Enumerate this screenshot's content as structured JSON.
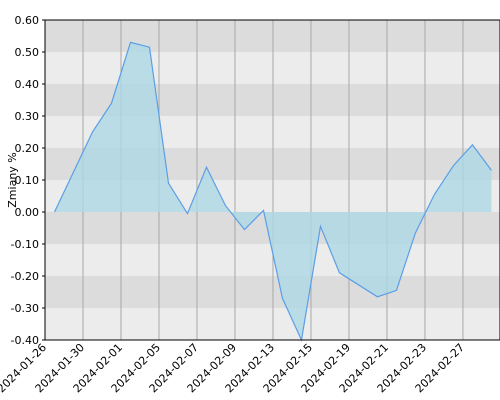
{
  "chart_data": {
    "type": "area",
    "y_label": "Zmiany %",
    "x": [
      0,
      2,
      3,
      4,
      5,
      6,
      7,
      8,
      9,
      10,
      11,
      12,
      13,
      14,
      15,
      17,
      18,
      19,
      20,
      21,
      22,
      23
    ],
    "series": [
      {
        "color": "#5b9ee6",
        "fill": "#add8e6",
        "values": [
          0.0,
          0.25,
          0.34,
          0.53,
          0.515,
          0.09,
          -0.005,
          0.14,
          0.02,
          -0.055,
          0.005,
          -0.27,
          -0.4,
          -0.045,
          -0.19,
          -0.265,
          -0.245,
          -0.065,
          0.055,
          0.145,
          0.21,
          0.13
        ]
      }
    ],
    "xlim": [
      -0.5,
      23.45
    ],
    "xticks": [
      {
        "value": -0.5,
        "label": "2024-01-26"
      },
      {
        "value": 1.5,
        "label": "2024-01-30"
      },
      {
        "value": 3.5,
        "label": "2024-02-01"
      },
      {
        "value": 5.5,
        "label": "2024-02-05"
      },
      {
        "value": 7.5,
        "label": "2024-02-07"
      },
      {
        "value": 9.5,
        "label": "2024-02-09"
      },
      {
        "value": 11.5,
        "label": "2024-02-13"
      },
      {
        "value": 13.5,
        "label": "2024-02-15"
      },
      {
        "value": 15.5,
        "label": "2024-02-19"
      },
      {
        "value": 17.5,
        "label": "2024-02-21"
      },
      {
        "value": 19.5,
        "label": "2024-02-23"
      },
      {
        "value": 21.5,
        "label": "2024-02-27"
      }
    ],
    "ylim": [
      -0.4,
      0.6
    ],
    "yticks": [
      {
        "value": -0.4,
        "label": "-0.40"
      },
      {
        "value": -0.3,
        "label": "-0.30"
      },
      {
        "value": -0.2,
        "label": "-0.20"
      },
      {
        "value": -0.1,
        "label": "-0.10"
      },
      {
        "value": 0,
        "label": "0.00"
      },
      {
        "value": 0.1,
        "label": "0.10"
      },
      {
        "value": 0.2,
        "label": "0.20"
      },
      {
        "value": 0.3,
        "label": "0.30"
      },
      {
        "value": 0.4,
        "label": "0.40"
      },
      {
        "value": 0.5,
        "label": "0.50"
      },
      {
        "value": 0.6,
        "label": "0.60"
      }
    ],
    "grid": true
  }
}
